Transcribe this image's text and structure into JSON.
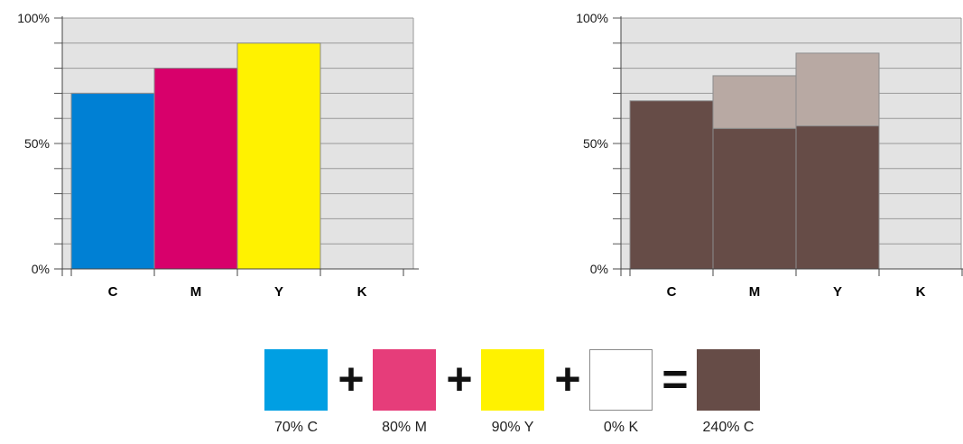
{
  "chart_data": [
    {
      "type": "bar",
      "categories": [
        "C",
        "M",
        "Y",
        "K"
      ],
      "ylim": [
        0,
        100
      ],
      "yticks": [
        "0%",
        "50%",
        "100%"
      ],
      "grid": true,
      "series": [
        {
          "values": [
            70,
            80,
            90,
            0
          ],
          "colors": [
            "#0080d4",
            "#d8006b",
            "#fff200",
            "#ffffff"
          ]
        }
      ]
    },
    {
      "type": "bar",
      "stacked": true,
      "categories": [
        "C",
        "M",
        "Y",
        "K"
      ],
      "ylim": [
        0,
        100
      ],
      "yticks": [
        "0%",
        "50%",
        "100%"
      ],
      "grid": true,
      "series": [
        {
          "values": [
            67,
            56,
            57,
            0
          ],
          "color": "#664c47"
        },
        {
          "values": [
            0,
            21,
            29,
            0
          ],
          "color": "#b8a9a3"
        }
      ]
    }
  ],
  "equation": {
    "items": [
      {
        "color": "#009fe3",
        "caption": "70% C"
      },
      {
        "color": "#e63d7a",
        "caption": "80% M"
      },
      {
        "color": "#fff200",
        "caption": "90% Y"
      },
      {
        "color": "#ffffff",
        "caption": "0% K"
      },
      {
        "color": "#664c47",
        "caption": "240% C"
      }
    ],
    "operators": [
      "+",
      "+",
      "+",
      "="
    ]
  }
}
